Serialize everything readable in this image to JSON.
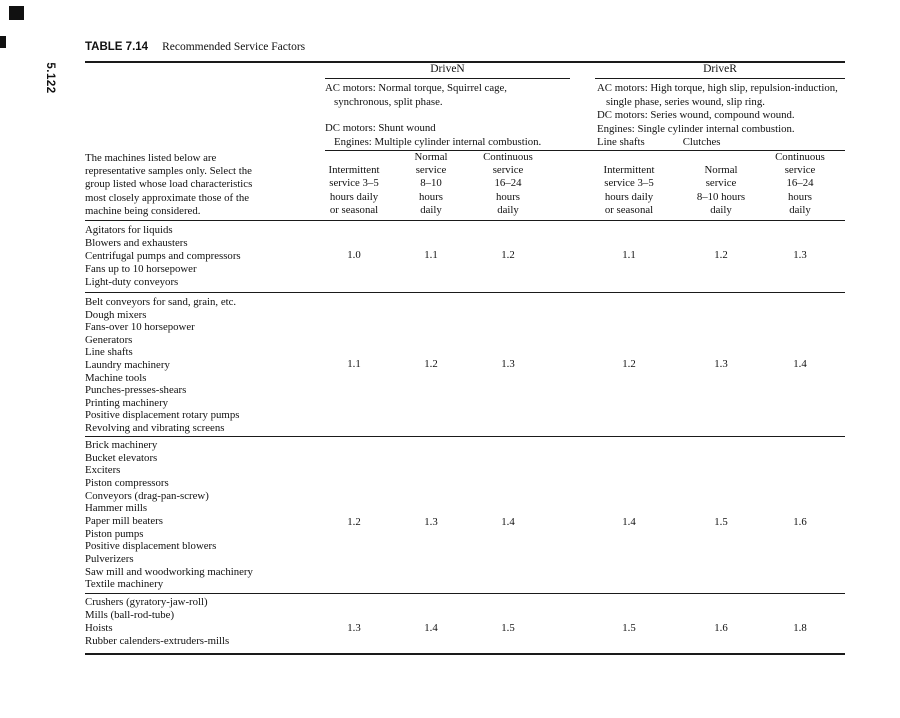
{
  "page": {
    "page_number": "5.122"
  },
  "title": {
    "label": "TABLE 7.14",
    "text": "Recommended Service Factors"
  },
  "table": {
    "drive_groups": [
      {
        "name": "DriveN"
      },
      {
        "name": "DriveR"
      }
    ],
    "driven_description": {
      "ac_lines": [
        "AC motors: Normal torque, Squirrel cage,",
        "synchronous, split phase."
      ],
      "dc_lines": [
        "DC motors: Shunt wound",
        "Engines: Multiple cylinder internal combustion."
      ]
    },
    "driver_description": {
      "lines": [
        "AC motors: High torque, high slip, repulsion-induction,",
        "single phase, series wound, slip ring.",
        "DC motors: Series wound, compound wound.",
        "Engines: Single cylinder internal combustion."
      ],
      "line_shafts": "Line shafts",
      "clutches": "Clutches"
    },
    "intro_lines": [
      "The machines listed below are",
      "representative samples only. Select the",
      "group listed whose load characteristics",
      "most closely approximate those of the",
      "machine being considered."
    ],
    "columns": [
      {
        "group": "DriveN",
        "lines": [
          "Intermittent",
          "service 3–5",
          "hours daily",
          "or seasonal"
        ]
      },
      {
        "group": "DriveN",
        "lines": [
          "Normal",
          "service",
          "8–10",
          "hours",
          "daily"
        ]
      },
      {
        "group": "DriveN",
        "lines": [
          "Continuous",
          "service",
          "16–24",
          "hours",
          "daily"
        ]
      },
      {
        "group": "DriveR",
        "lines": [
          "Intermittent",
          "service 3–5",
          "hours daily",
          "or seasonal"
        ]
      },
      {
        "group": "DriveR",
        "lines": [
          "Normal",
          "service",
          "8–10 hours",
          "daily"
        ]
      },
      {
        "group": "DriveR",
        "lines": [
          "Continuous",
          "service",
          "16–24",
          "hours",
          "daily"
        ]
      }
    ],
    "groups": [
      {
        "machines": [
          "Agitators for liquids",
          "Blowers and exhausters",
          "Centrifugal pumps and compressors",
          "Fans up to 10 horsepower",
          "Light-duty conveyors"
        ],
        "values": [
          "1.0",
          "1.1",
          "1.2",
          "1.1",
          "1.2",
          "1.3"
        ]
      },
      {
        "machines": [
          "Belt conveyors for sand, grain, etc.",
          "Dough mixers",
          "Fans-over 10 horsepower",
          "Generators",
          "Line shafts",
          "Laundry machinery",
          "Machine tools",
          "Punches-presses-shears",
          "Printing machinery",
          "Positive displacement rotary pumps",
          "Revolving and vibrating screens"
        ],
        "values": [
          "1.1",
          "1.2",
          "1.3",
          "1.2",
          "1.3",
          "1.4"
        ]
      },
      {
        "machines": [
          "Brick machinery",
          "Bucket elevators",
          "Exciters",
          "Piston compressors",
          "Conveyors (drag-pan-screw)",
          "Hammer mills",
          "Paper mill beaters",
          "Piston pumps",
          "Positive displacement blowers",
          "Pulverizers",
          "Saw mill and woodworking machinery",
          "Textile machinery"
        ],
        "values": [
          "1.2",
          "1.3",
          "1.4",
          "1.4",
          "1.5",
          "1.6"
        ]
      },
      {
        "machines": [
          "Crushers (gyratory-jaw-roll)",
          "Mills (ball-rod-tube)",
          "Hoists",
          "Rubber calenders-extruders-mills"
        ],
        "values": [
          "1.3",
          "1.4",
          "1.5",
          "1.5",
          "1.6",
          "1.8"
        ]
      }
    ]
  }
}
